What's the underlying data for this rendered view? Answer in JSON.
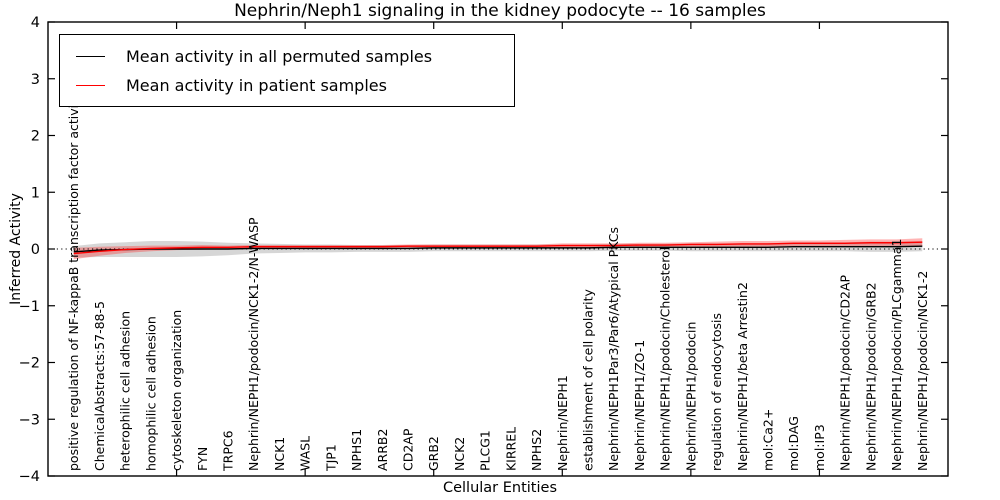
{
  "chart_data": {
    "type": "line",
    "title": "Nephrin/Neph1 signaling in the kidney podocyte -- 16 samples",
    "xlabel": "Cellular Entities",
    "ylabel": "Inferred Activity",
    "ylim": [
      -4,
      4
    ],
    "xlim": [
      0,
      35
    ],
    "yticks": [
      "4",
      "3",
      "2",
      "1",
      "0",
      "−1",
      "−2",
      "−3",
      "−4"
    ],
    "ytick_values": [
      4,
      3,
      2,
      1,
      0,
      -1,
      -2,
      -3,
      -4
    ],
    "xtick_values": [
      5,
      10,
      15,
      20,
      25,
      30
    ],
    "grid": false,
    "zero_line_style": "dotted",
    "legend_position": "upper-left",
    "categories": [
      "positive regulation of NF-kappaB transcription factor activity",
      "ChemicalAbstracts:57-88-5",
      "heterophilic cell adhesion",
      "homophilic cell adhesion",
      "cytoskeleton organization",
      "FYN",
      "TRPC6",
      "Nephrin/NEPH1/podocin/NCK1-2/N-WASP",
      "NCK1",
      "WASL",
      "TJP1",
      "NPHS1",
      "ARRB2",
      "CD2AP",
      "GRB2",
      "NCK2",
      "PLCG1",
      "KIRREL",
      "NPHS2",
      "Nephrin/NEPH1",
      "establishment of cell polarity",
      "Nephrin/NEPH1Par3/Par6/Atypical PKCs",
      "Nephrin/NEPH1/ZO-1",
      "Nephrin/NEPH1/podocin/Cholesterol",
      "Nephrin/NEPH1/podocin",
      "regulation of endocytosis",
      "Nephrin/NEPH1/beta Arrestin2",
      "mol:Ca2+",
      "mol:DAG",
      "mol:IP3",
      "Nephrin/NEPH1/podocin/CD2AP",
      "Nephrin/NEPH1/podocin/GRB2",
      "Nephrin/NEPH1/podocin/PLCgamma1",
      "Nephrin/NEPH1/podocin/NCK1-2"
    ],
    "series": [
      {
        "name": "Mean activity in all permuted samples",
        "color": "#000000",
        "band_color": "rgba(0,0,0,0.16)",
        "values": [
          -0.05,
          -0.02,
          -0.01,
          0.0,
          0.0,
          0.0,
          0.0,
          0.01,
          0.01,
          0.01,
          0.01,
          0.01,
          0.01,
          0.01,
          0.02,
          0.02,
          0.02,
          0.02,
          0.02,
          0.02,
          0.02,
          0.03,
          0.03,
          0.03,
          0.03,
          0.03,
          0.03,
          0.03,
          0.04,
          0.04,
          0.04,
          0.04,
          0.04,
          0.05
        ],
        "band_halfwidth": [
          0.1,
          0.12,
          0.13,
          0.14,
          0.14,
          0.13,
          0.11,
          0.09,
          0.08,
          0.07,
          0.07,
          0.06,
          0.06,
          0.06,
          0.06,
          0.06,
          0.06,
          0.06,
          0.06,
          0.06,
          0.06,
          0.06,
          0.06,
          0.06,
          0.07,
          0.07,
          0.07,
          0.07,
          0.08,
          0.08,
          0.08,
          0.09,
          0.09,
          0.09
        ]
      },
      {
        "name": "Mean activity in patient samples",
        "color": "#ff0000",
        "band_color": "rgba(255,40,40,0.35)",
        "values": [
          -0.08,
          -0.04,
          -0.01,
          0.01,
          0.02,
          0.03,
          0.03,
          0.04,
          0.04,
          0.04,
          0.04,
          0.04,
          0.04,
          0.05,
          0.05,
          0.05,
          0.05,
          0.05,
          0.05,
          0.06,
          0.06,
          0.06,
          0.07,
          0.07,
          0.08,
          0.08,
          0.09,
          0.09,
          0.1,
          0.1,
          0.1,
          0.11,
          0.11,
          0.12
        ],
        "band_halfwidth": [
          0.1,
          0.08,
          0.06,
          0.05,
          0.04,
          0.04,
          0.03,
          0.03,
          0.03,
          0.03,
          0.03,
          0.03,
          0.03,
          0.03,
          0.03,
          0.03,
          0.03,
          0.03,
          0.03,
          0.04,
          0.04,
          0.04,
          0.04,
          0.04,
          0.04,
          0.05,
          0.05,
          0.05,
          0.05,
          0.05,
          0.06,
          0.06,
          0.06,
          0.07
        ]
      }
    ]
  }
}
